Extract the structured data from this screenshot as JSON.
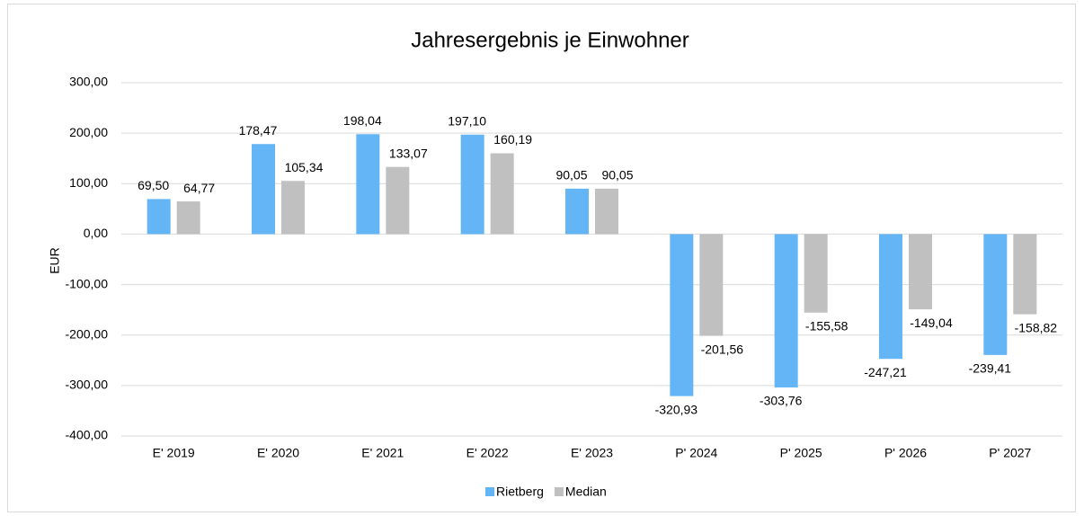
{
  "chart_data": {
    "type": "bar",
    "title": "Jahresergebnis je Einwohner",
    "ylabel": "EUR",
    "categories": [
      "E' 2019",
      "E' 2020",
      "E' 2021",
      "E' 2022",
      "E' 2023",
      "P' 2024",
      "P' 2025",
      "P' 2026",
      "P' 2027"
    ],
    "series": [
      {
        "name": "Rietberg",
        "color": "#64b5f6",
        "values": [
          69.5,
          178.47,
          198.04,
          197.1,
          90.05,
          -320.93,
          -303.76,
          -247.21,
          -239.41
        ],
        "value_labels": [
          "69,50",
          "178,47",
          "198,04",
          "197,10",
          "90,05",
          "-320,93",
          "-303,76",
          "-247,21",
          "-239,41"
        ]
      },
      {
        "name": "Median",
        "color": "#c0c0c0",
        "values": [
          64.77,
          105.34,
          133.07,
          160.19,
          90.05,
          -201.56,
          -155.58,
          -149.04,
          -158.82
        ],
        "value_labels": [
          "64,77",
          "105,34",
          "133,07",
          "160,19",
          "90,05",
          "-201,56",
          "-155,58",
          "-149,04",
          "-158,82"
        ]
      }
    ],
    "ylim": [
      -400,
      300
    ],
    "yticks": [
      {
        "value": -400,
        "label": "-400,00"
      },
      {
        "value": -300,
        "label": "-300,00"
      },
      {
        "value": -200,
        "label": "-200,00"
      },
      {
        "value": -100,
        "label": "-100,00"
      },
      {
        "value": 0,
        "label": "0,00"
      },
      {
        "value": 100,
        "label": "100,00"
      },
      {
        "value": 200,
        "label": "200,00"
      },
      {
        "value": 300,
        "label": "300,00"
      }
    ],
    "grid": true,
    "legend": "bottom"
  }
}
